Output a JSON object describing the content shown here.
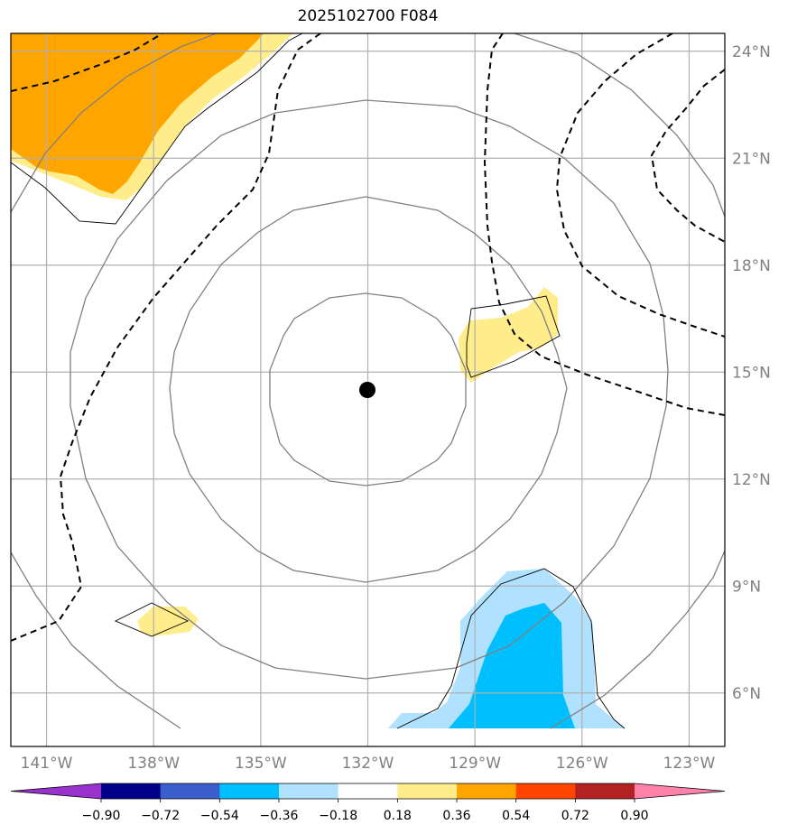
{
  "title": "2025102700 F084",
  "map": {
    "lon_range": [
      -142,
      -122
    ],
    "lat_range": [
      4.5,
      24.5
    ],
    "lon_ticks": [
      {
        "value": -141,
        "label": "141°W"
      },
      {
        "value": -138,
        "label": "138°W"
      },
      {
        "value": -135,
        "label": "135°W"
      },
      {
        "value": -132,
        "label": "132°W"
      },
      {
        "value": -129,
        "label": "129°W"
      },
      {
        "value": -126,
        "label": "126°W"
      },
      {
        "value": -123,
        "label": "123°W"
      }
    ],
    "lat_ticks": [
      {
        "value": 6,
        "label": "6°N"
      },
      {
        "value": 9,
        "label": "9°N"
      },
      {
        "value": 12,
        "label": "12°N"
      },
      {
        "value": 15,
        "label": "15°N"
      },
      {
        "value": 18,
        "label": "18°N"
      },
      {
        "value": 21,
        "label": "21°N"
      },
      {
        "value": 24,
        "label": "24°N"
      }
    ],
    "center": {
      "lon": -132,
      "lat": 14.5
    },
    "grid": true,
    "colors": {
      "grid": "#b0b0b0",
      "circles": "#808080",
      "dashed": "#000000",
      "thin_outline": "#000000"
    }
  },
  "colorbar": {
    "levels": [
      "−0.90",
      "−0.72",
      "−0.54",
      "−0.36",
      "−0.18",
      "0.18",
      "0.36",
      "0.54",
      "0.72",
      "0.90"
    ],
    "colors": [
      "#9932cc",
      "#00008b",
      "#3a5fcd",
      "#00bfff",
      "#b0e2ff",
      "#ffffff",
      "#ffec8b",
      "#ffa500",
      "#ff4500",
      "#b22222",
      "#ff82ab"
    ],
    "extend": "both"
  }
}
